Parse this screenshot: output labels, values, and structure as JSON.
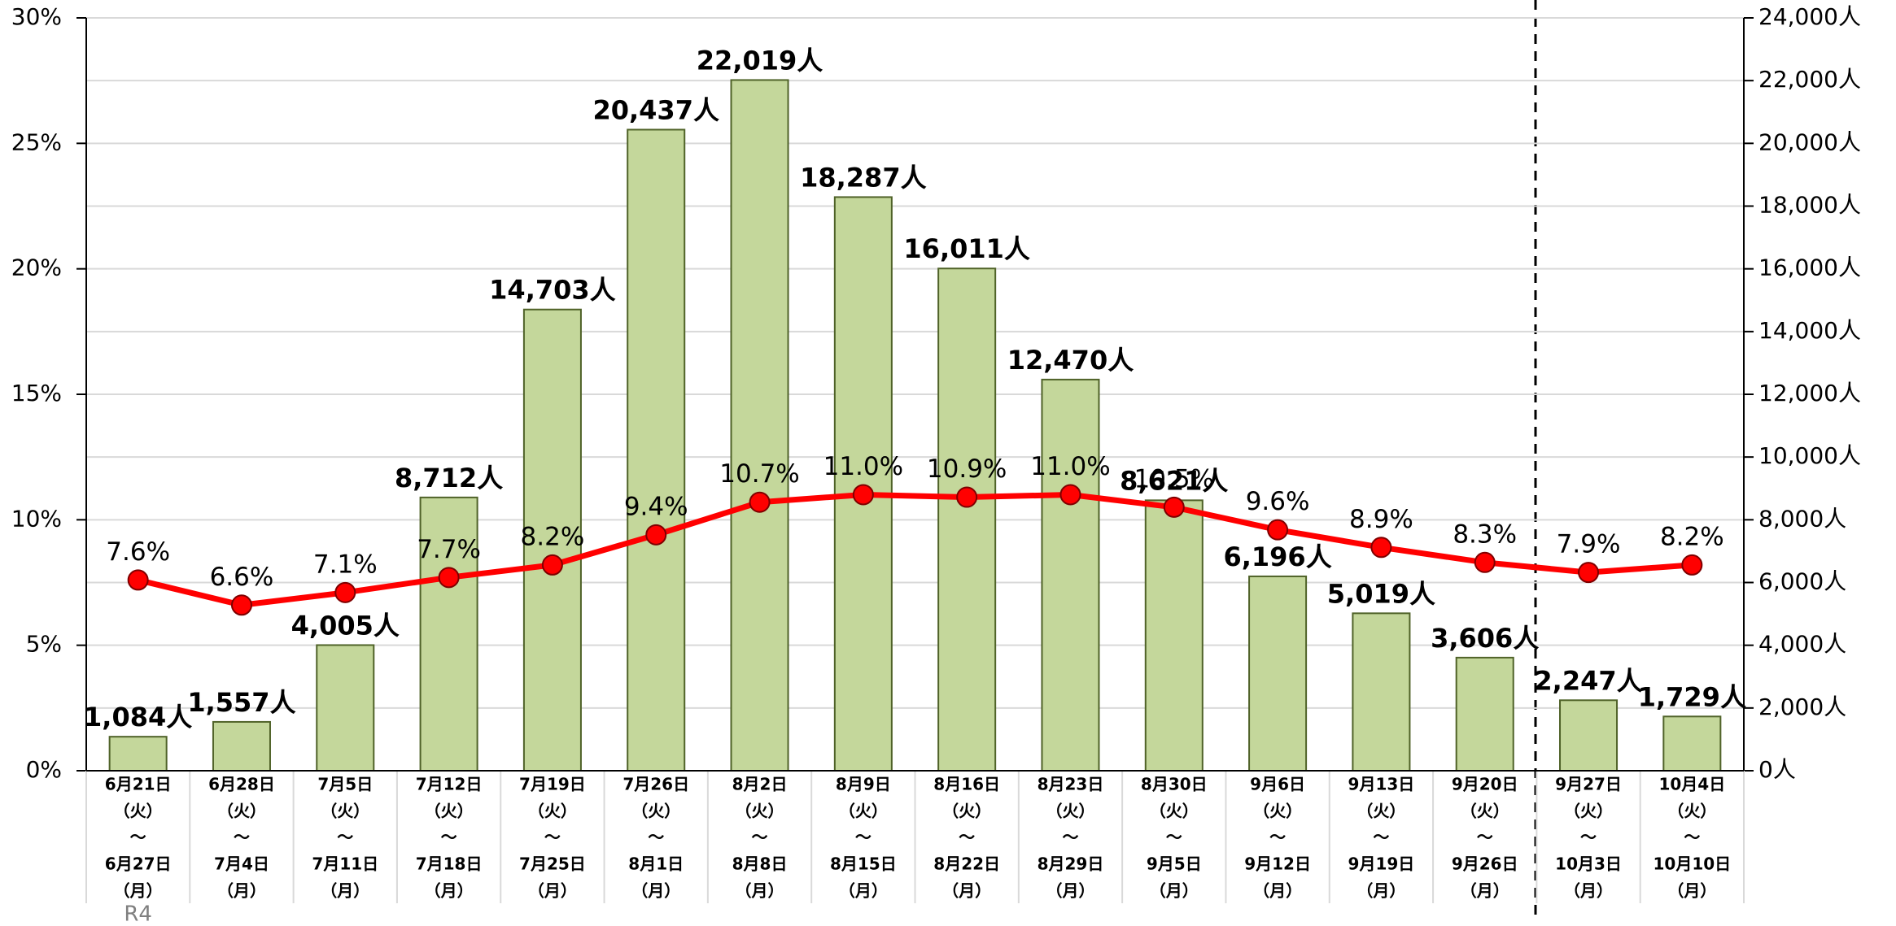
{
  "chart_data": {
    "type": "bar_line",
    "categories": [
      [
        "6月21日",
        "（火）",
        "～",
        "6月27日",
        "（月）"
      ],
      [
        "6月28日",
        "（火）",
        "～",
        "7月4日",
        "（月）"
      ],
      [
        "7月5日",
        "（火）",
        "～",
        "7月11日",
        "（月）"
      ],
      [
        "7月12日",
        "（火）",
        "～",
        "7月18日",
        "（月）"
      ],
      [
        "7月19日",
        "（火）",
        "～",
        "7月25日",
        "（月）"
      ],
      [
        "7月26日",
        "（火）",
        "～",
        "8月1日",
        "（月）"
      ],
      [
        "8月2日",
        "（火）",
        "～",
        "8月8日",
        "（月）"
      ],
      [
        "8月9日",
        "（火）",
        "～",
        "8月15日",
        "（月）"
      ],
      [
        "8月16日",
        "（火）",
        "～",
        "8月22日",
        "（月）"
      ],
      [
        "8月23日",
        "（火）",
        "～",
        "8月29日",
        "（月）"
      ],
      [
        "8月30日",
        "（火）",
        "～",
        "9月5日",
        "（月）"
      ],
      [
        "9月6日",
        "（火）",
        "～",
        "9月12日",
        "（月）"
      ],
      [
        "9月13日",
        "（火）",
        "～",
        "9月19日",
        "（月）"
      ],
      [
        "9月20日",
        "（火）",
        "～",
        "9月26日",
        "（月）"
      ],
      [
        "9月27日",
        "（火）",
        "～",
        "10月3日",
        "（月）"
      ],
      [
        "10月4日",
        "（火）",
        "～",
        "10月10日",
        "（月）"
      ]
    ],
    "annotation": "R4",
    "series": [
      {
        "type": "bar",
        "axis": "y2",
        "color": "#c4d79b",
        "values": [
          1084,
          1557,
          4005,
          8712,
          14703,
          20437,
          22019,
          18287,
          16011,
          12470,
          8621,
          6196,
          5019,
          3606,
          2247,
          1729
        ],
        "value_labels": [
          "1,084人",
          "1,557人",
          "4,005人",
          "8,712人",
          "14,703人",
          "20,437人",
          "22,019人",
          "18,287人",
          "16,011人",
          "12,470人",
          "8,621人",
          "6,196人",
          "5,019人",
          "3,606人",
          "2,247人",
          "1,729人"
        ]
      },
      {
        "type": "line",
        "axis": "y",
        "color": "#ff0000",
        "values": [
          7.6,
          6.6,
          7.1,
          7.7,
          8.2,
          9.4,
          10.7,
          11.0,
          10.9,
          11.0,
          10.5,
          9.6,
          8.9,
          8.3,
          7.9,
          8.2
        ],
        "value_labels": [
          "7.6%",
          "6.6%",
          "7.1%",
          "7.7%",
          "8.2%",
          "9.4%",
          "10.7%",
          "11.0%",
          "10.9%",
          "11.0%",
          "10.5%",
          "9.6%",
          "8.9%",
          "8.3%",
          "7.9%",
          "8.2%"
        ]
      }
    ],
    "ylim": [
      0,
      30
    ],
    "yticks": [
      {
        "value": 0,
        "label": "0%"
      },
      {
        "value": 5,
        "label": "5%"
      },
      {
        "value": 10,
        "label": "10%"
      },
      {
        "value": 15,
        "label": "15%"
      },
      {
        "value": 20,
        "label": "20%"
      },
      {
        "value": 25,
        "label": "25%"
      },
      {
        "value": 30,
        "label": "30%"
      }
    ],
    "y2lim": [
      0,
      24000
    ],
    "y2ticks": [
      {
        "value": 0,
        "label": "0人"
      },
      {
        "value": 2000,
        "label": "2,000人"
      },
      {
        "value": 4000,
        "label": "4,000人"
      },
      {
        "value": 6000,
        "label": "6,000人"
      },
      {
        "value": 8000,
        "label": "8,000人"
      },
      {
        "value": 10000,
        "label": "10,000人"
      },
      {
        "value": 12000,
        "label": "12,000人"
      },
      {
        "value": 14000,
        "label": "14,000人"
      },
      {
        "value": 16000,
        "label": "16,000人"
      },
      {
        "value": 18000,
        "label": "18,000人"
      },
      {
        "value": 20000,
        "label": "20,000人"
      },
      {
        "value": 22000,
        "label": "22,000人"
      },
      {
        "value": 24000,
        "label": "24,000人"
      }
    ],
    "grid": true
  }
}
